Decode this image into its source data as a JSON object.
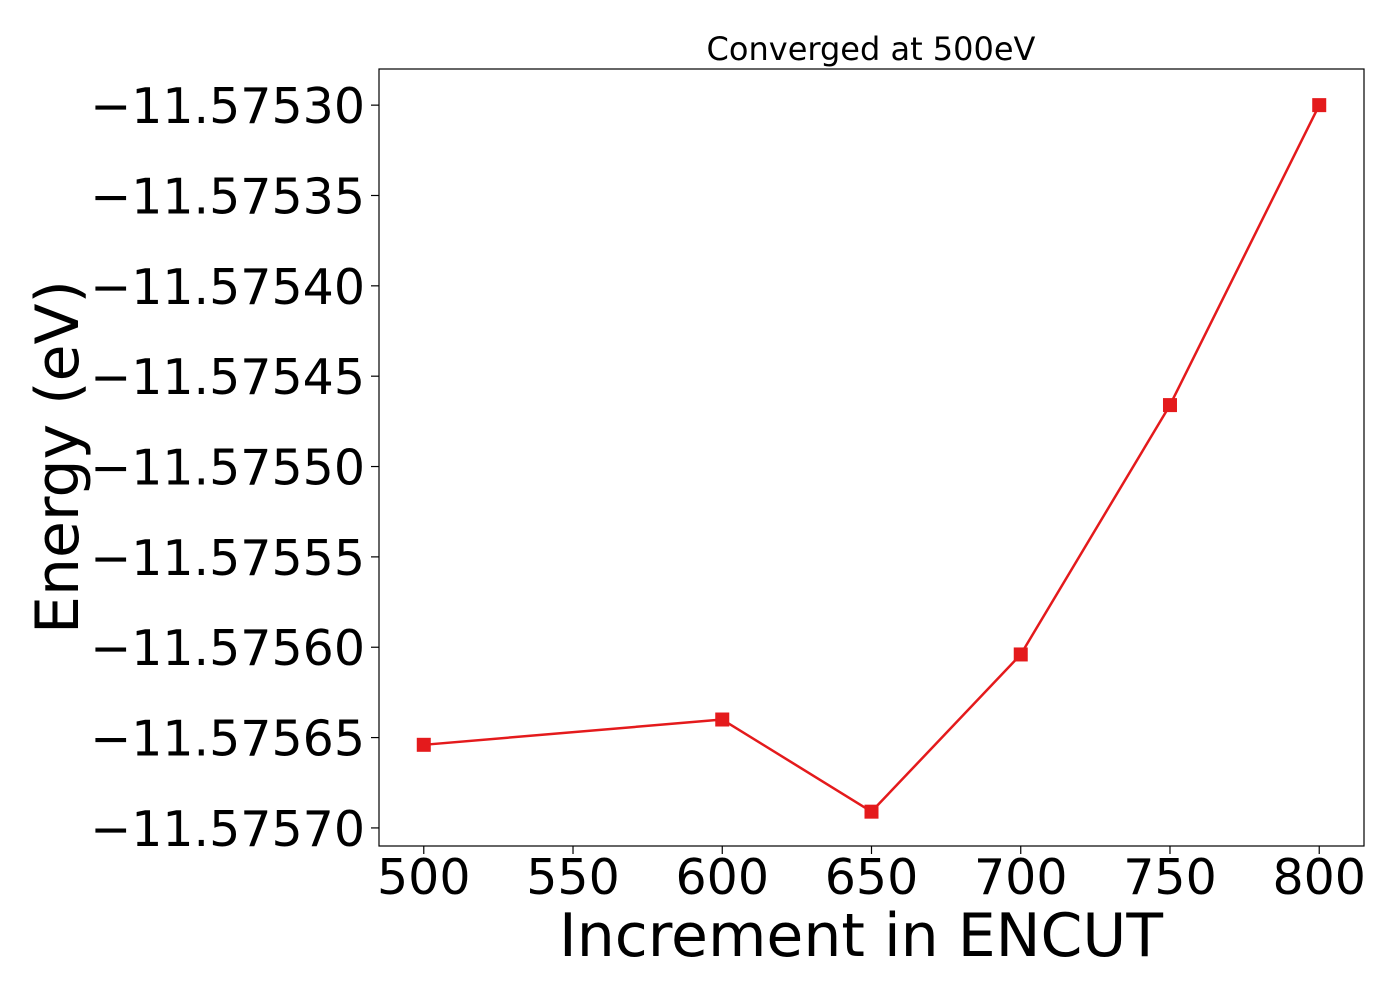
{
  "chart_data": {
    "type": "line",
    "title": "Converged at 500eV",
    "xlabel": "Increment in ENCUT",
    "ylabel": "Energy (eV)",
    "x": [
      500,
      600,
      650,
      700,
      750,
      800
    ],
    "series": [
      {
        "values": [
          -11.575654,
          -11.57564,
          -11.575691,
          -11.575604,
          -11.575466,
          -11.5753
        ]
      }
    ],
    "x_ticks": [
      500,
      550,
      600,
      650,
      700,
      750,
      800
    ],
    "x_tick_labels": [
      "500",
      "550",
      "600",
      "650",
      "700",
      "750",
      "800"
    ],
    "y_ticks": [
      -11.5753,
      -11.57535,
      -11.5754,
      -11.57545,
      -11.5755,
      -11.57555,
      -11.5756,
      -11.57565,
      -11.5757
    ],
    "y_tick_labels": [
      "−11.57530",
      "−11.57535",
      "−11.57540",
      "−11.57545",
      "−11.57550",
      "−11.57555",
      "−11.57560",
      "−11.57565",
      "−11.57570"
    ],
    "xlim": [
      485,
      815
    ],
    "ylim": [
      -11.57571,
      -11.57528
    ],
    "grid": false,
    "marker": "square",
    "colors": {
      "series": "#e41a1c",
      "axes": "#000000"
    }
  }
}
